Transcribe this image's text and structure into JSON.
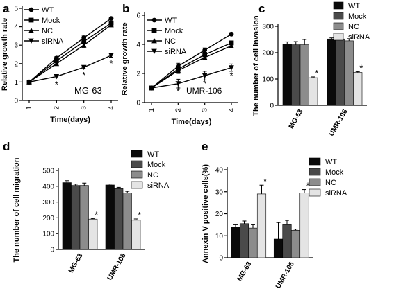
{
  "figure": {
    "panel_labels": [
      "a",
      "b",
      "c",
      "d",
      "e"
    ]
  },
  "chart_data": [
    {
      "type": "line",
      "panel": "a",
      "title": "",
      "inset_label": "MG-63",
      "xlabel": "Time(days)",
      "ylabel": "Relative growth rate",
      "x": [
        1,
        2,
        3,
        4
      ],
      "xlim": [
        1,
        4
      ],
      "ylim": [
        0,
        5
      ],
      "yticks": [
        0,
        1,
        2,
        3,
        4,
        5
      ],
      "grid": false,
      "legend_position": "top-left",
      "series": [
        {
          "name": "WT",
          "marker": "circle",
          "values": [
            1.0,
            2.3,
            3.4,
            4.45
          ],
          "errors": [
            0.05,
            0.08,
            0.1,
            0.08
          ]
        },
        {
          "name": "Mock",
          "marker": "square",
          "values": [
            1.0,
            2.15,
            3.2,
            4.2
          ],
          "errors": [
            0.05,
            0.08,
            0.12,
            0.1
          ]
        },
        {
          "name": "NC",
          "marker": "triangle-up",
          "values": [
            1.0,
            2.0,
            3.0,
            4.1
          ],
          "errors": [
            0.05,
            0.1,
            0.12,
            0.1
          ]
        },
        {
          "name": "siRNA",
          "marker": "triangle-down",
          "values": [
            1.0,
            1.3,
            1.8,
            2.45
          ],
          "errors": [
            0.05,
            0.08,
            0.08,
            0.1
          ]
        }
      ],
      "annotations": [
        {
          "x": 2,
          "y": 1.3,
          "text": "*"
        },
        {
          "x": 3,
          "y": 1.8,
          "text": "*"
        },
        {
          "x": 4,
          "y": 2.45,
          "text": "*"
        }
      ]
    },
    {
      "type": "line",
      "panel": "b",
      "title": "",
      "inset_label": "UMR-106",
      "xlabel": "Time(days)",
      "ylabel": "Relative growth rate",
      "x": [
        1,
        2,
        3,
        4
      ],
      "xlim": [
        1,
        4
      ],
      "ylim": [
        0,
        6
      ],
      "yticks": [
        0,
        2,
        4,
        6
      ],
      "grid": false,
      "legend_position": "top-left",
      "series": [
        {
          "name": "WT",
          "marker": "circle",
          "values": [
            1.0,
            2.5,
            3.6,
            4.7
          ],
          "errors": [
            0.05,
            0.2,
            0.15,
            0.1
          ]
        },
        {
          "name": "Mock",
          "marker": "square",
          "values": [
            1.0,
            2.3,
            3.3,
            4.1
          ],
          "errors": [
            0.05,
            0.2,
            0.15,
            0.1
          ]
        },
        {
          "name": "NC",
          "marker": "triangle-up",
          "values": [
            1.0,
            2.2,
            3.1,
            3.9
          ],
          "errors": [
            0.05,
            0.2,
            0.15,
            0.1
          ]
        },
        {
          "name": "siRNA",
          "marker": "triangle-down",
          "values": [
            1.0,
            1.3,
            1.85,
            2.4
          ],
          "errors": [
            0.05,
            0.3,
            0.3,
            0.25
          ]
        }
      ],
      "annotations": [
        {
          "x": 2,
          "y": 1.3,
          "text": "*"
        },
        {
          "x": 3,
          "y": 1.85,
          "text": "*"
        },
        {
          "x": 4,
          "y": 2.4,
          "text": "*"
        }
      ]
    },
    {
      "type": "bar",
      "panel": "c",
      "title": "",
      "xlabel": "",
      "ylabel": "The number of cell invasion",
      "categories": [
        "MG-63",
        "UMR-106"
      ],
      "ylim": [
        0,
        300
      ],
      "yticks": [
        0,
        100,
        200,
        300
      ],
      "grid": false,
      "legend_position": "top-right",
      "series": [
        {
          "name": "WT",
          "color": "#0a0a0a",
          "values": [
            233,
            252
          ],
          "errors": [
            8,
            4
          ]
        },
        {
          "name": "Mock",
          "color": "#4a4a4a",
          "values": [
            230,
            252
          ],
          "errors": [
            12,
            5
          ]
        },
        {
          "name": "NC",
          "color": "#8c8c8c",
          "values": [
            230,
            245
          ],
          "errors": [
            20,
            8
          ]
        },
        {
          "name": "siRNA",
          "color": "#e4e4e4",
          "values": [
            105,
            125
          ],
          "errors": [
            3,
            3
          ]
        }
      ],
      "annotations": [
        {
          "category": "MG-63",
          "series": "siRNA",
          "text": "*"
        },
        {
          "category": "UMR-106",
          "series": "siRNA",
          "text": "*"
        }
      ]
    },
    {
      "type": "bar",
      "panel": "d",
      "title": "",
      "xlabel": "",
      "ylabel": "The number of cell migration",
      "categories": [
        "MG-63",
        "UMR-106"
      ],
      "ylim": [
        0,
        500
      ],
      "yticks": [
        0,
        100,
        200,
        300,
        400,
        500
      ],
      "grid": false,
      "legend_position": "top-right",
      "series": [
        {
          "name": "WT",
          "color": "#0a0a0a",
          "values": [
            423,
            408
          ],
          "errors": [
            12,
            6
          ]
        },
        {
          "name": "Mock",
          "color": "#4a4a4a",
          "values": [
            405,
            385
          ],
          "errors": [
            8,
            8
          ]
        },
        {
          "name": "NC",
          "color": "#8c8c8c",
          "values": [
            405,
            358
          ],
          "errors": [
            15,
            10
          ]
        },
        {
          "name": "siRNA",
          "color": "#e4e4e4",
          "values": [
            192,
            185
          ],
          "errors": [
            4,
            8
          ]
        }
      ],
      "annotations": [
        {
          "category": "MG-63",
          "series": "siRNA",
          "text": "*"
        },
        {
          "category": "UMR-106",
          "series": "siRNA",
          "text": "*"
        }
      ]
    },
    {
      "type": "bar",
      "panel": "e",
      "title": "",
      "xlabel": "",
      "ylabel": "Annexin V positive cells(%)",
      "categories": [
        "MG-63",
        "UMR-106"
      ],
      "ylim": [
        0,
        40
      ],
      "yticks": [
        0,
        10,
        20,
        30,
        40
      ],
      "grid": false,
      "legend_position": "top-right",
      "series": [
        {
          "name": "WT",
          "color": "#0a0a0a",
          "values": [
            14,
            8.5
          ],
          "errors": [
            1,
            7.5
          ]
        },
        {
          "name": "Mock",
          "color": "#4a4a4a",
          "values": [
            15.5,
            15
          ],
          "errors": [
            1.2,
            2
          ]
        },
        {
          "name": "NC",
          "color": "#8c8c8c",
          "values": [
            13.5,
            12.5
          ],
          "errors": [
            1.5,
            0.5
          ]
        },
        {
          "name": "siRNA",
          "color": "#e4e4e4",
          "values": [
            29,
            29.5
          ],
          "errors": [
            4,
            1.5
          ]
        }
      ],
      "annotations": [
        {
          "category": "MG-63",
          "series": "siRNA",
          "text": "*"
        },
        {
          "category": "UMR-106",
          "series": "siRNA",
          "text": "*"
        }
      ]
    }
  ]
}
